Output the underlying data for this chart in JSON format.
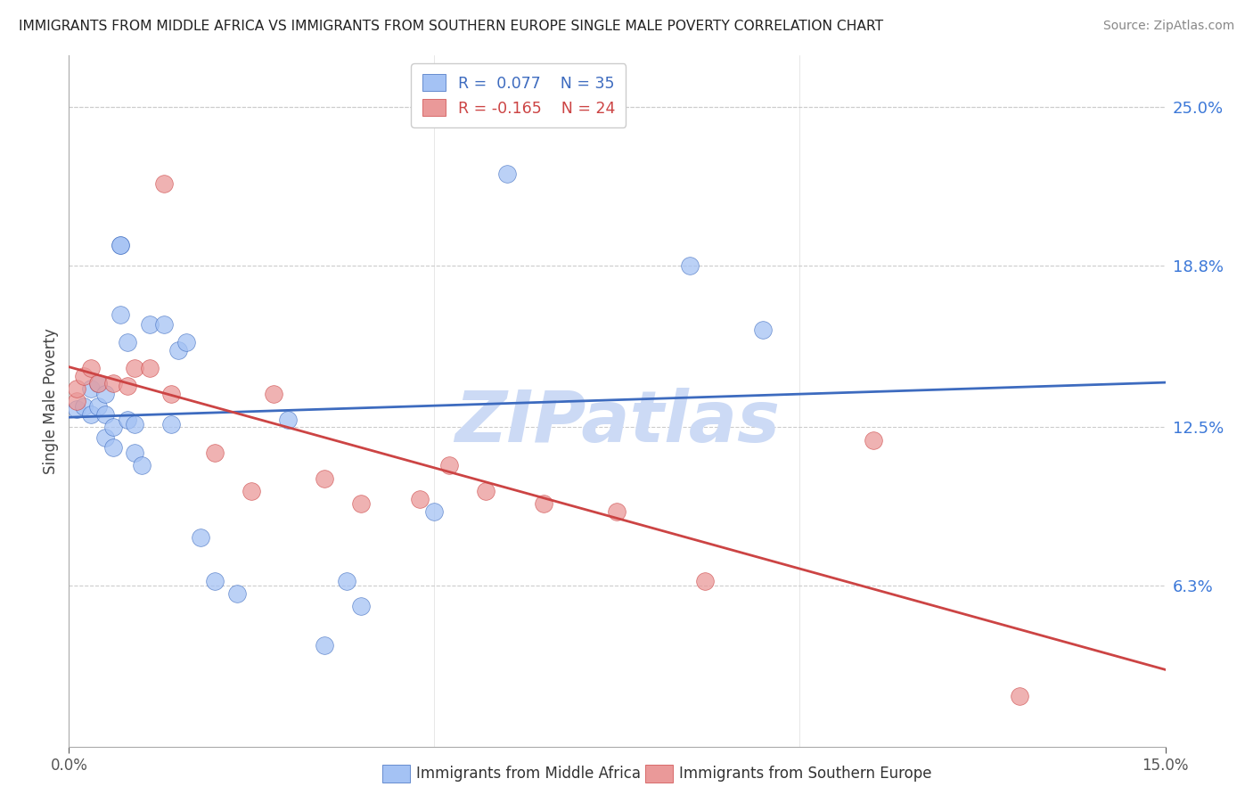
{
  "title": "IMMIGRANTS FROM MIDDLE AFRICA VS IMMIGRANTS FROM SOUTHERN EUROPE SINGLE MALE POVERTY CORRELATION CHART",
  "source": "Source: ZipAtlas.com",
  "ylabel": "Single Male Poverty",
  "y_tick_labels": [
    "25.0%",
    "18.8%",
    "12.5%",
    "6.3%"
  ],
  "y_tick_values": [
    0.25,
    0.188,
    0.125,
    0.063
  ],
  "xlim": [
    0.0,
    0.15
  ],
  "ylim": [
    0.0,
    0.27
  ],
  "blue_r": 0.077,
  "blue_n": 35,
  "pink_r": -0.165,
  "pink_n": 24,
  "blue_color": "#a4c2f4",
  "pink_color": "#ea9999",
  "blue_line_color": "#3d6bbf",
  "pink_line_color": "#cc4444",
  "watermark_text": "ZIPatlas",
  "watermark_color": "#ccdaf5",
  "background_color": "#ffffff",
  "grid_color": "#cccccc",
  "blue_x": [
    0.001,
    0.002,
    0.003,
    0.003,
    0.004,
    0.004,
    0.005,
    0.005,
    0.005,
    0.006,
    0.006,
    0.007,
    0.007,
    0.007,
    0.008,
    0.008,
    0.009,
    0.009,
    0.01,
    0.011,
    0.013,
    0.014,
    0.015,
    0.016,
    0.018,
    0.02,
    0.023,
    0.03,
    0.035,
    0.038,
    0.04,
    0.05,
    0.06,
    0.085,
    0.095
  ],
  "blue_y": [
    0.132,
    0.133,
    0.13,
    0.14,
    0.133,
    0.142,
    0.121,
    0.13,
    0.138,
    0.117,
    0.125,
    0.196,
    0.196,
    0.169,
    0.128,
    0.158,
    0.126,
    0.115,
    0.11,
    0.165,
    0.165,
    0.126,
    0.155,
    0.158,
    0.082,
    0.065,
    0.06,
    0.128,
    0.04,
    0.065,
    0.055,
    0.092,
    0.224,
    0.188,
    0.163
  ],
  "pink_x": [
    0.001,
    0.001,
    0.002,
    0.003,
    0.004,
    0.006,
    0.008,
    0.009,
    0.011,
    0.013,
    0.014,
    0.02,
    0.025,
    0.028,
    0.035,
    0.04,
    0.048,
    0.052,
    0.057,
    0.065,
    0.075,
    0.087,
    0.11,
    0.13
  ],
  "pink_y": [
    0.135,
    0.14,
    0.145,
    0.148,
    0.142,
    0.142,
    0.141,
    0.148,
    0.148,
    0.22,
    0.138,
    0.115,
    0.1,
    0.138,
    0.105,
    0.095,
    0.097,
    0.11,
    0.1,
    0.095,
    0.092,
    0.065,
    0.12,
    0.02
  ]
}
